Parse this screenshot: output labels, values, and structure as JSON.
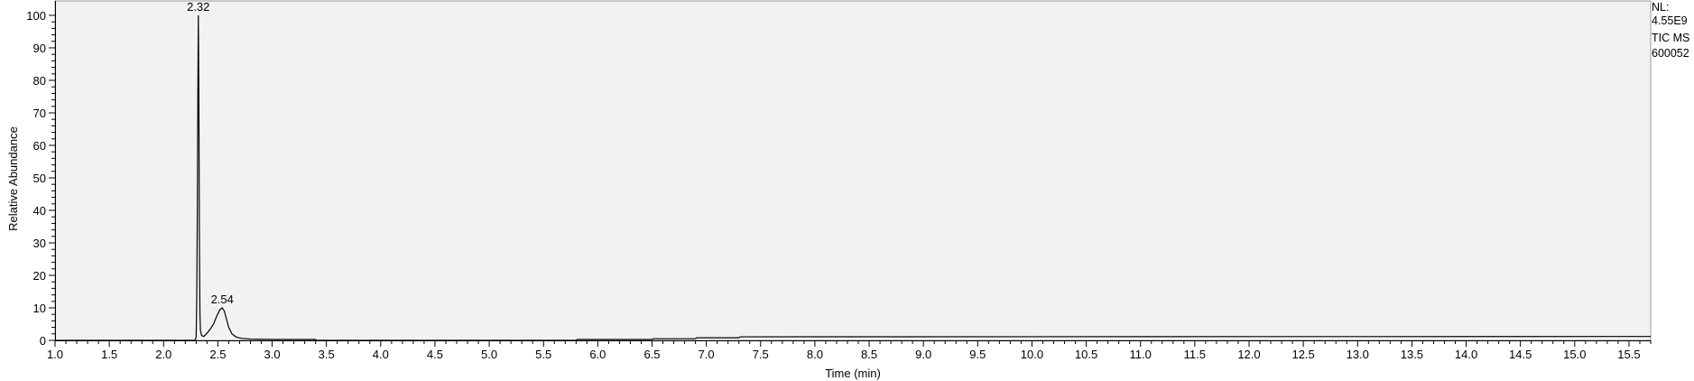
{
  "chart_data": {
    "type": "line",
    "xlabel": "Time (min)",
    "ylabel": "Relative Abundance",
    "xlim": [
      1.0,
      15.7
    ],
    "ylim": [
      0,
      100
    ],
    "x_ticks": [
      "1.0",
      "1.5",
      "2.0",
      "2.5",
      "3.0",
      "3.5",
      "4.0",
      "4.5",
      "5.0",
      "5.5",
      "6.0",
      "6.5",
      "7.0",
      "7.5",
      "8.0",
      "8.5",
      "9.0",
      "9.5",
      "10.0",
      "10.5",
      "11.0",
      "11.5",
      "12.0",
      "12.5",
      "13.0",
      "13.5",
      "14.0",
      "14.5",
      "15.0",
      "15.5"
    ],
    "y_ticks": [
      "0",
      "10",
      "20",
      "30",
      "40",
      "50",
      "60",
      "70",
      "80",
      "90",
      "100"
    ],
    "peak_labels": [
      {
        "x": 2.32,
        "y": 100,
        "text": "2.32"
      },
      {
        "x": 2.54,
        "y": 10,
        "text": "2.54"
      }
    ],
    "info": [
      "NL:",
      "4.55E9",
      "TIC  MS",
      "600052"
    ],
    "colors": {
      "plot_background": "#f2f2f2",
      "trace": "#000000"
    },
    "series": [
      {
        "x": [
          1.0,
          2.29,
          2.3,
          2.305,
          2.31,
          2.315,
          2.32,
          2.325,
          2.33,
          2.335,
          2.34,
          2.35,
          2.37,
          2.4,
          2.43,
          2.46,
          2.49,
          2.52,
          2.54,
          2.56,
          2.58,
          2.6,
          2.63,
          2.67,
          2.72,
          2.8,
          3.0,
          3.4,
          3.41,
          5.8,
          5.81,
          6.5,
          6.51,
          6.9,
          6.91,
          7.3,
          7.31,
          15.7
        ],
        "y": [
          0,
          0,
          1,
          12,
          36,
          72,
          100,
          73,
          30,
          8,
          3,
          1.5,
          1.2,
          2.2,
          3.5,
          5,
          7.5,
          9.5,
          10,
          9,
          6.5,
          4,
          2,
          1,
          0.6,
          0.4,
          0.3,
          0.3,
          0,
          0,
          0.3,
          0.3,
          0.5,
          0.5,
          0.8,
          0.8,
          1.1,
          1.2
        ]
      }
    ]
  }
}
